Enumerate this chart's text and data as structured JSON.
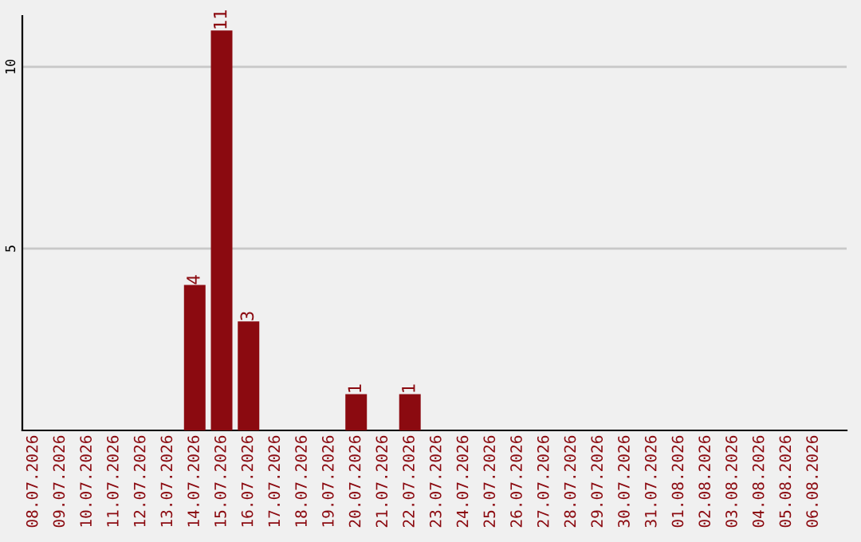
{
  "chart_data": {
    "type": "bar",
    "categories": [
      "08.07.2026",
      "09.07.2026",
      "10.07.2026",
      "11.07.2026",
      "12.07.2026",
      "13.07.2026",
      "14.07.2026",
      "15.07.2026",
      "16.07.2026",
      "17.07.2026",
      "18.07.2026",
      "19.07.2026",
      "20.07.2026",
      "21.07.2026",
      "22.07.2026",
      "23.07.2026",
      "24.07.2026",
      "25.07.2026",
      "26.07.2026",
      "27.07.2026",
      "28.07.2026",
      "29.07.2026",
      "30.07.2026",
      "31.07.2026",
      "01.08.2026",
      "02.08.2026",
      "03.08.2026",
      "04.08.2026",
      "05.08.2026",
      "06.08.2026"
    ],
    "values": [
      0,
      0,
      0,
      0,
      0,
      0,
      4,
      11,
      3,
      0,
      0,
      0,
      1,
      0,
      1,
      0,
      0,
      0,
      0,
      0,
      0,
      0,
      0,
      0,
      0,
      0,
      0,
      0,
      0,
      0
    ],
    "value_labels": [
      null,
      null,
      null,
      null,
      null,
      null,
      "4",
      "11",
      "3",
      null,
      null,
      null,
      "1",
      null,
      "1",
      null,
      null,
      null,
      null,
      null,
      null,
      null,
      null,
      null,
      null,
      null,
      null,
      null,
      null,
      null
    ],
    "color": "#8b0a10",
    "ylim": [
      0,
      11.4
    ],
    "yticks": [
      5,
      10
    ],
    "grid": "y"
  }
}
